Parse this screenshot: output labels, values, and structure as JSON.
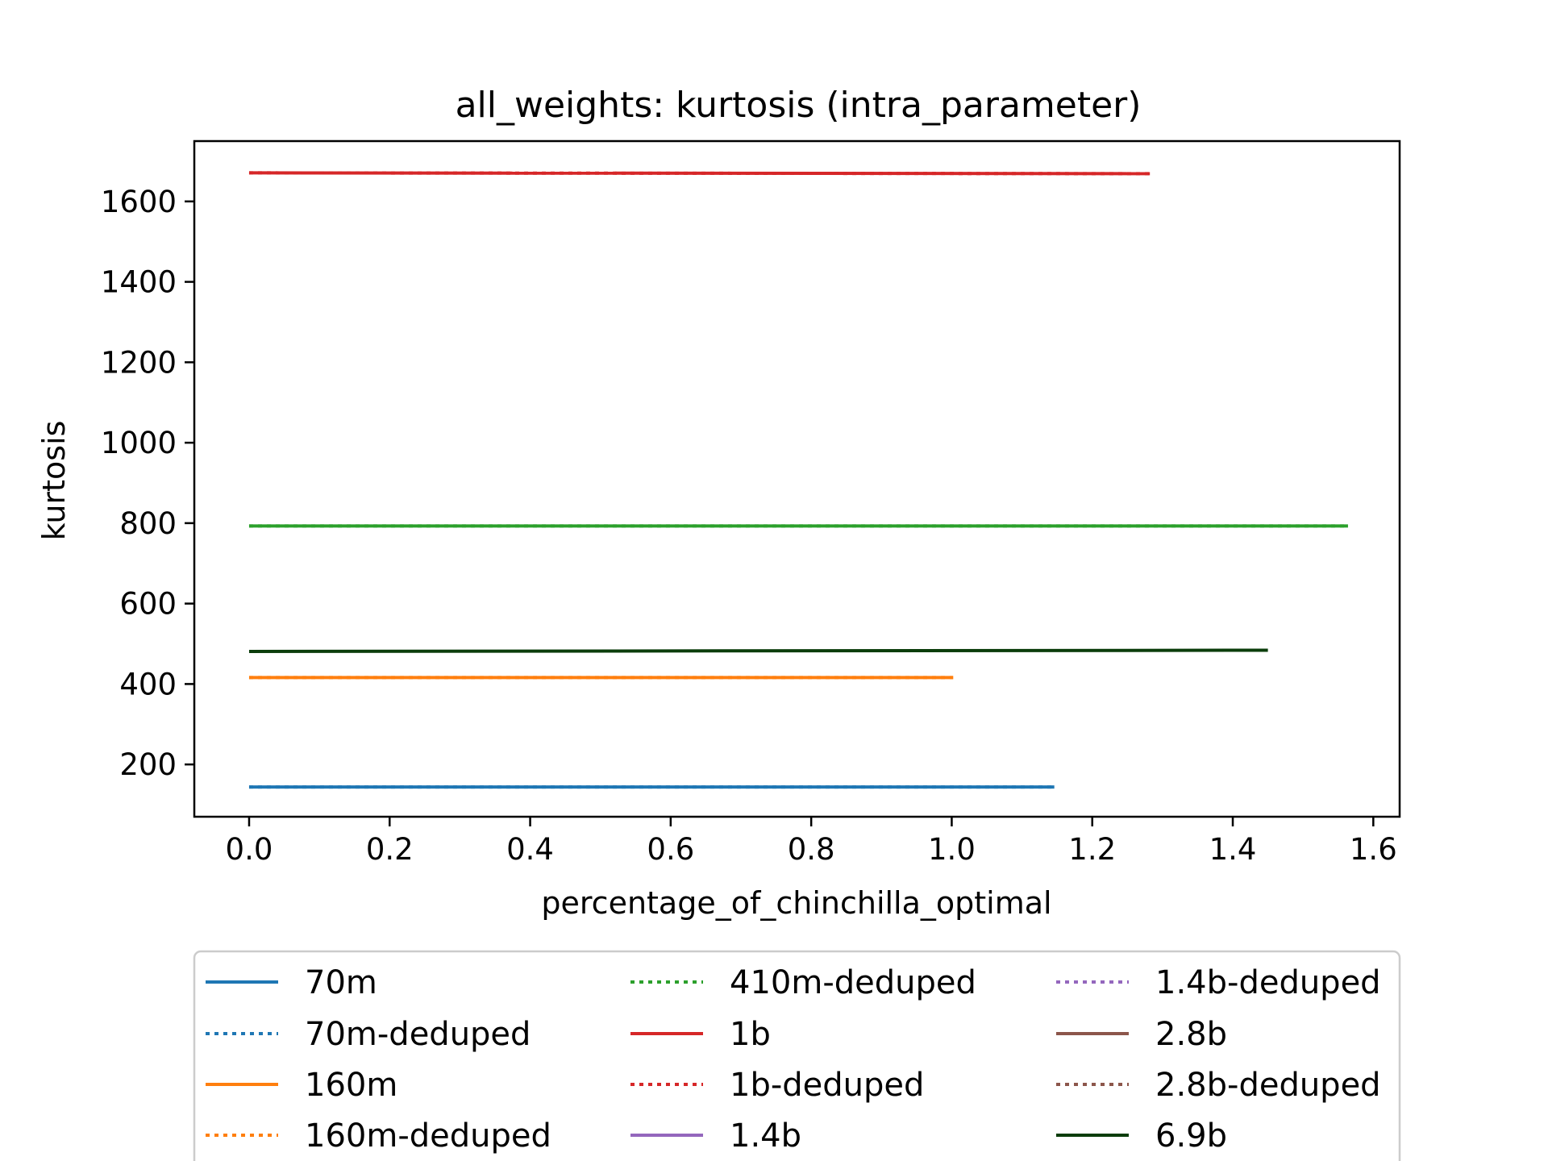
{
  "chart_data": {
    "type": "line",
    "title": "all_weights: kurtosis (intra_parameter)",
    "xlabel": "percentage_of_chinchilla_optimal",
    "ylabel": "kurtosis",
    "xlim": [
      -0.078,
      1.6375
    ],
    "ylim": [
      70,
      1750
    ],
    "xticks": [
      0.0,
      0.2,
      0.4,
      0.6,
      0.8,
      1.0,
      1.2,
      1.4,
      1.6
    ],
    "xtick_labels": [
      "0.0",
      "0.2",
      "0.4",
      "0.6",
      "0.8",
      "1.0",
      "1.2",
      "1.4",
      "1.6"
    ],
    "yticks": [
      200,
      400,
      600,
      800,
      1000,
      1200,
      1400,
      1600
    ],
    "ytick_labels": [
      "200",
      "400",
      "600",
      "800",
      "1000",
      "1200",
      "1400",
      "1600"
    ],
    "grid": false,
    "legend_position": "below",
    "series": [
      {
        "name": "70m",
        "color": "#1f77b4",
        "style": "solid",
        "x": [
          0.0,
          1.146
        ],
        "y": [
          144,
          144
        ]
      },
      {
        "name": "70m-deduped",
        "color": "#1f77b4",
        "style": "dotted",
        "x": [
          0.0,
          1.146
        ],
        "y": [
          144,
          144
        ]
      },
      {
        "name": "160m",
        "color": "#ff7f0e",
        "style": "solid",
        "x": [
          0.0,
          1.002
        ],
        "y": [
          416,
          416
        ]
      },
      {
        "name": "160m-deduped",
        "color": "#ff7f0e",
        "style": "dotted",
        "x": [
          0.0,
          1.002
        ],
        "y": [
          416,
          416
        ]
      },
      {
        "name": "410m-deduped",
        "color": "#2ca02c",
        "style": "dotted",
        "x": [
          0.0,
          1.564
        ],
        "y": [
          793,
          793
        ]
      },
      {
        "name": "1b",
        "color": "#d62728",
        "style": "solid",
        "x": [
          0.0,
          1.282
        ],
        "y": [
          1671,
          1669
        ]
      },
      {
        "name": "1b-deduped",
        "color": "#d62728",
        "style": "dotted",
        "x": [
          0.0,
          1.282
        ],
        "y": [
          1671,
          1669
        ]
      },
      {
        "name": "1.4b",
        "color": "#9467bd",
        "style": "solid",
        "x": [],
        "y": []
      },
      {
        "name": "1.4b-deduped",
        "color": "#9467bd",
        "style": "dotted",
        "x": [],
        "y": []
      },
      {
        "name": "2.8b",
        "color": "#8c564b",
        "style": "solid",
        "x": [],
        "y": []
      },
      {
        "name": "2.8b-deduped",
        "color": "#8c564b",
        "style": "dotted",
        "x": [],
        "y": []
      },
      {
        "name": "6.9b",
        "color": "#0b3d0b",
        "style": "solid",
        "x": [
          0.0,
          1.45
        ],
        "y": [
          481,
          484
        ]
      }
    ],
    "extra_lines": [
      {
        "color": "#2ca02c",
        "style": "solid",
        "x": [
          0.0,
          1.564
        ],
        "y": [
          793,
          793
        ]
      }
    ]
  }
}
